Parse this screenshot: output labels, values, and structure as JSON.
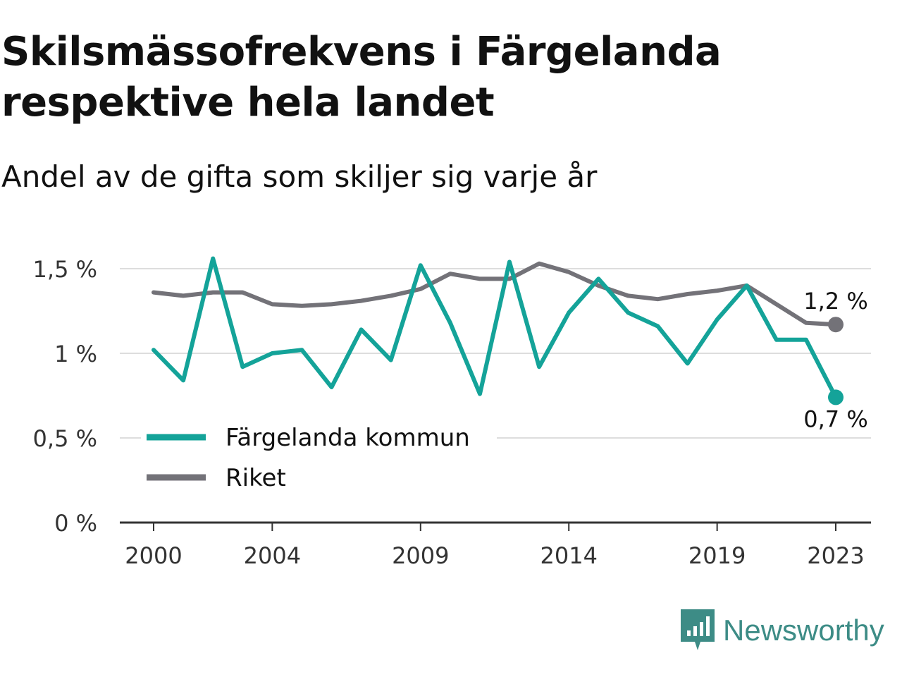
{
  "title": "Skilsmässofrekvens i Färgelanda respektive hela landet",
  "subtitle": "Andel av de gifta som skiljer sig varje år",
  "brand": {
    "name": "Newsworthy",
    "icon": "chart-bubble-icon",
    "color": "#3d8c86"
  },
  "chart_data": {
    "type": "line",
    "x": [
      2000,
      2001,
      2002,
      2003,
      2004,
      2005,
      2006,
      2007,
      2008,
      2009,
      2010,
      2011,
      2012,
      2013,
      2014,
      2015,
      2016,
      2017,
      2018,
      2019,
      2020,
      2021,
      2022,
      2023
    ],
    "x_ticks": [
      {
        "value": 2000,
        "label": "2000"
      },
      {
        "value": 2004,
        "label": "2004"
      },
      {
        "value": 2009,
        "label": "2009"
      },
      {
        "value": 2014,
        "label": "2014"
      },
      {
        "value": 2019,
        "label": "2019"
      },
      {
        "value": 2023,
        "label": "2023"
      }
    ],
    "y_ticks": [
      {
        "value": 0,
        "label": "0 %"
      },
      {
        "value": 0.5,
        "label": "0,5 %"
      },
      {
        "value": 1,
        "label": "1 %"
      },
      {
        "value": 1.5,
        "label": "1,5 %"
      }
    ],
    "ylim": [
      0,
      1.6
    ],
    "grid": true,
    "legend_position": "bottom-left",
    "series": [
      {
        "name": "Färgelanda kommun",
        "color": "#14a399",
        "values": [
          1.02,
          0.84,
          1.56,
          0.92,
          1.0,
          1.02,
          0.8,
          1.14,
          0.96,
          1.52,
          1.18,
          0.76,
          1.54,
          0.92,
          1.24,
          1.44,
          1.24,
          1.16,
          0.94,
          1.2,
          1.4,
          1.08,
          1.08,
          0.74
        ],
        "end_label": "0,7 %"
      },
      {
        "name": "Riket",
        "color": "#737278",
        "values": [
          1.36,
          1.34,
          1.36,
          1.36,
          1.29,
          1.28,
          1.29,
          1.31,
          1.34,
          1.38,
          1.47,
          1.44,
          1.44,
          1.53,
          1.48,
          1.4,
          1.34,
          1.32,
          1.35,
          1.37,
          1.4,
          1.29,
          1.18,
          1.17
        ],
        "end_label": "1,2 %"
      }
    ]
  }
}
